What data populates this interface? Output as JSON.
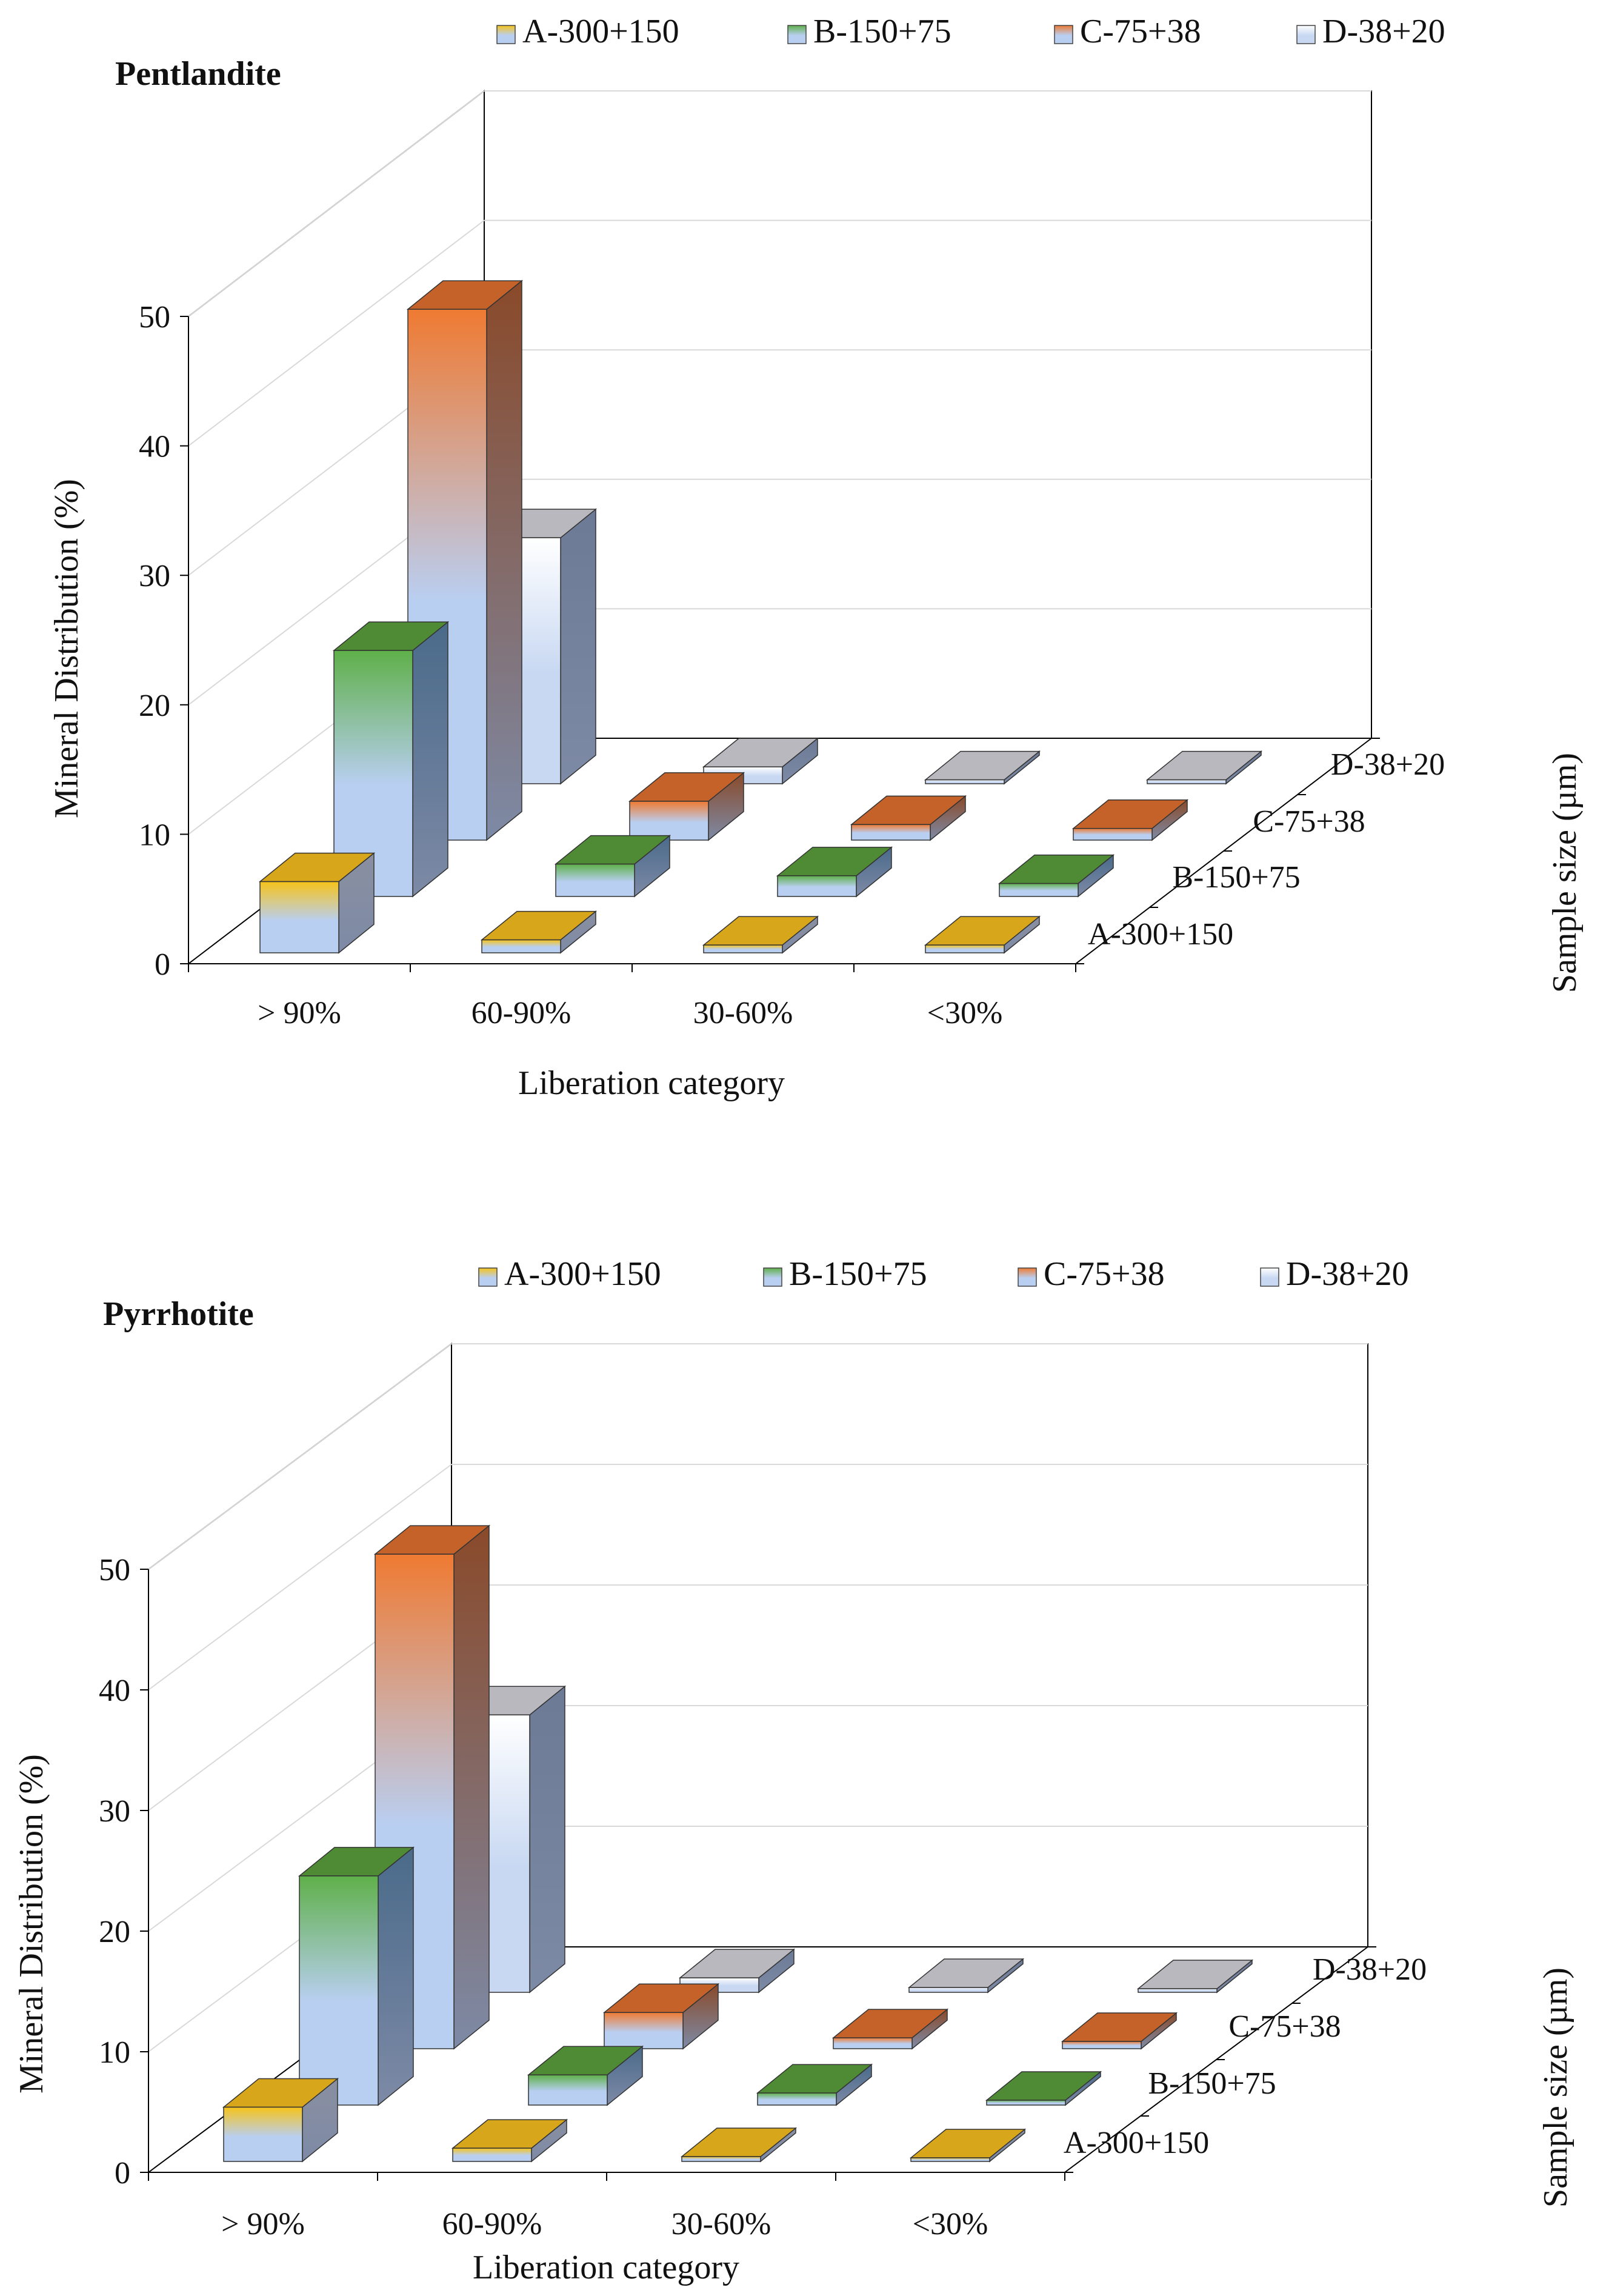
{
  "colors": {
    "A": {
      "light": "#b9cff2",
      "mid": "#f6c31a",
      "top": "#d7a61a",
      "side": "#8a8fa0"
    },
    "B": {
      "light": "#b9cff2",
      "mid": "#5fb04a",
      "top": "#4f8a34",
      "side": "#4a6a8a"
    },
    "C": {
      "light": "#b9cff2",
      "mid": "#ef7a32",
      "top": "#c5622a",
      "side": "#8a4a2a"
    },
    "D": {
      "light": "#c8d8f2",
      "mid": "#ffffff",
      "top": "#b8b8be",
      "side": "#6c7a96"
    },
    "axis": "#000000",
    "grid": "#d9d9d9"
  },
  "chart_data": [
    {
      "type": "bar3d",
      "title": "Pentlandite",
      "xlabel": "Liberation category",
      "ylabel": "Mineral Distribution (%)",
      "zlabel": "Sample size (µm)",
      "ylim": [
        0,
        50
      ],
      "yticks": [
        "0",
        "10",
        "20",
        "30",
        "40",
        "50"
      ],
      "categories": [
        "> 90%",
        "60-90%",
        "30-60%",
        "<30%"
      ],
      "series": [
        {
          "key": "A",
          "name": "A-300+150",
          "values": [
            5.5,
            1.0,
            0.6,
            0.6
          ]
        },
        {
          "key": "B",
          "name": "B-150+75",
          "values": [
            19.0,
            2.5,
            1.6,
            1.0
          ]
        },
        {
          "key": "C",
          "name": "C-75+38",
          "values": [
            41.0,
            3.0,
            1.2,
            0.9
          ]
        },
        {
          "key": "D",
          "name": "D-38+20",
          "values": [
            19.0,
            1.3,
            0.3,
            0.3
          ]
        }
      ]
    },
    {
      "type": "bar3d",
      "title": "Pyrrhotite",
      "xlabel": "Liberation category",
      "ylabel": "Mineral Distribution (%)",
      "zlabel": "Sample size (µm)",
      "ylim": [
        0,
        50
      ],
      "yticks": [
        "0",
        "10",
        "20",
        "30",
        "40",
        "50"
      ],
      "categories": [
        "> 90%",
        "60-90%",
        "30-60%",
        "<30%"
      ],
      "series": [
        {
          "key": "A",
          "name": "A-300+150",
          "values": [
            4.5,
            1.1,
            0.4,
            0.3
          ]
        },
        {
          "key": "B",
          "name": "B-150+75",
          "values": [
            19.0,
            2.5,
            1.0,
            0.4
          ]
        },
        {
          "key": "C",
          "name": "C-75+38",
          "values": [
            41.0,
            3.0,
            0.9,
            0.6
          ]
        },
        {
          "key": "D",
          "name": "D-38+20",
          "values": [
            23.0,
            1.2,
            0.4,
            0.3
          ]
        }
      ]
    }
  ]
}
